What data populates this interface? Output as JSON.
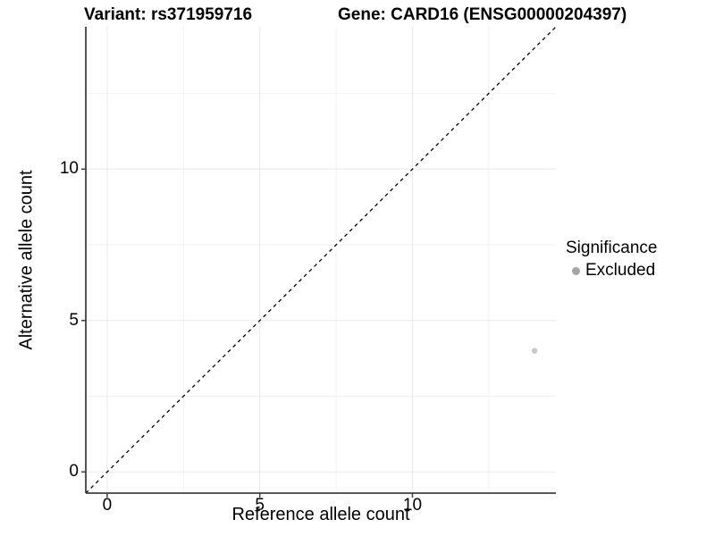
{
  "titles": {
    "variant": "Variant: rs371959716",
    "gene": "Gene: CARD16 (ENSG00000204397)"
  },
  "axes": {
    "x_label": "Reference allele count",
    "y_label": "Alternative allele count"
  },
  "legend": {
    "title": "Significance",
    "items": [
      {
        "label": "Excluded",
        "color": "#a6a6a6"
      }
    ]
  },
  "colors": {
    "background": "#ffffff",
    "grid_major": "#e9e9e9",
    "grid_minor": "#f2f2f2",
    "axis_line": "#404040",
    "tick_mark": "#404040",
    "identity_line": "#000000",
    "point": "#c9c9c9",
    "text": "#000000"
  },
  "chart_data": {
    "type": "scatter",
    "title": "Variant: rs371959716  |  Gene: CARD16 (ENSG00000204397)",
    "xlabel": "Reference allele count",
    "ylabel": "Alternative allele count",
    "xlim": [
      -0.7,
      14.7
    ],
    "ylim": [
      -0.7,
      14.7
    ],
    "x_major_ticks": [
      0,
      5,
      10
    ],
    "y_major_ticks": [
      0,
      5,
      10
    ],
    "x_minor_ticks": [
      2.5,
      7.5,
      12.5
    ],
    "y_minor_ticks": [
      2.5,
      7.5,
      12.5
    ],
    "grid": true,
    "legend_position": "right",
    "legend_title": "Significance",
    "series": [
      {
        "name": "Excluded",
        "color": "#c9c9c9",
        "point_radius": 3.2,
        "points": [
          {
            "x": 14,
            "y": 4
          }
        ]
      }
    ],
    "annotations": [
      {
        "type": "identity-line",
        "style": "dashed",
        "dash": "4 4",
        "color": "#000000",
        "from": [
          -0.7,
          -0.7
        ],
        "to": [
          14.7,
          14.7
        ]
      }
    ]
  }
}
